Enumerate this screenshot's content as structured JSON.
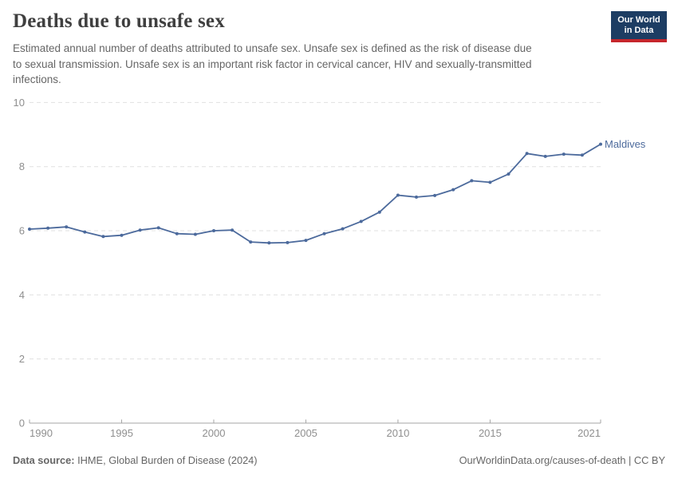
{
  "header": {
    "logo": {
      "line1": "Our World",
      "line2": "in Data"
    }
  },
  "chart_data": {
    "type": "line",
    "title": "Deaths due to unsafe sex",
    "subtitle_lines": [
      "Estimated annual number of deaths attributed to unsafe sex. Unsafe sex is defined as the risk of disease due",
      "to sexual transmission. Unsafe sex is an important risk factor in cervical cancer, HIV and sexually-transmitted",
      "infections."
    ],
    "xlabel": "",
    "ylabel": "",
    "xlim": [
      1990,
      2021
    ],
    "ylim": [
      0,
      10
    ],
    "xticks": [
      1990,
      1995,
      2000,
      2005,
      2010,
      2015,
      2021
    ],
    "yticks": [
      0,
      2,
      4,
      6,
      8,
      10
    ],
    "grid": "horizontal-dashed",
    "legend_position": "end-of-line-label",
    "line_color": "#4C6A9C",
    "axis_color": "#a5a5a5",
    "gridline_color": "#e0e0e0",
    "series": [
      {
        "name": "Maldives",
        "x": [
          1990,
          1991,
          1992,
          1993,
          1994,
          1995,
          1996,
          1997,
          1998,
          1999,
          2000,
          2001,
          2002,
          2003,
          2004,
          2005,
          2006,
          2007,
          2008,
          2009,
          2010,
          2011,
          2012,
          2013,
          2014,
          2015,
          2016,
          2017,
          2018,
          2019,
          2020,
          2021
        ],
        "values": [
          6.05,
          6.08,
          6.12,
          5.96,
          5.82,
          5.86,
          6.02,
          6.09,
          5.91,
          5.89,
          6.0,
          6.02,
          5.65,
          5.62,
          5.63,
          5.7,
          5.91,
          6.06,
          6.29,
          6.58,
          7.11,
          7.05,
          7.1,
          7.28,
          7.56,
          7.51,
          7.77,
          8.41,
          8.32,
          8.39,
          8.36,
          8.7
        ]
      }
    ]
  },
  "footer": {
    "datasource_label": "Data source:",
    "datasource_text": " IHME, Global Burden of Disease (2024)",
    "credit": "OurWorldinData.org/causes-of-death | CC BY"
  }
}
